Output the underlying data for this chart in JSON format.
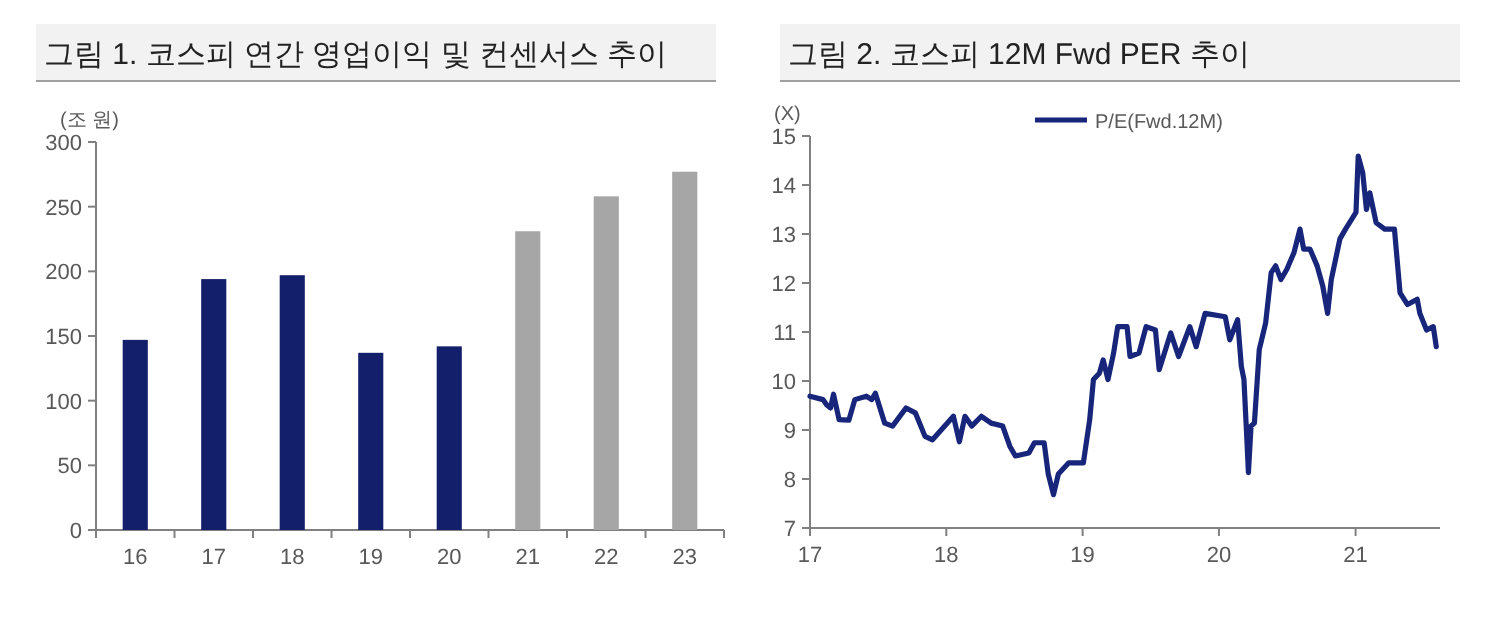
{
  "chart_data": [
    {
      "type": "bar",
      "title": "그림 1. 코스피 연간 영업이익 및 컨센서스 추이",
      "ylabel": "(조 원)",
      "categories": [
        "16",
        "17",
        "18",
        "19",
        "20",
        "21",
        "22",
        "23"
      ],
      "values": [
        147,
        194,
        197,
        137,
        142,
        231,
        258,
        277
      ],
      "colors": [
        "#141f6b",
        "#141f6b",
        "#141f6b",
        "#141f6b",
        "#141f6b",
        "#a6a6a6",
        "#a6a6a6",
        "#a6a6a6"
      ],
      "ylim": [
        0,
        300
      ],
      "yticks": [
        0,
        50,
        100,
        150,
        200,
        250,
        300
      ]
    },
    {
      "type": "line",
      "title": "그림 2. 코스피 12M Fwd PER 추이",
      "ylabel": "(X)",
      "legend": "top",
      "series": [
        {
          "name": "P/E(Fwd.12M)",
          "color": "#17267a",
          "x": [
            "2017-01-01",
            "2017-02-05",
            "2017-02-15",
            "2017-02-25",
            "2017-03-05",
            "2017-03-20",
            "2017-04-15",
            "2017-05-01",
            "2017-06-01",
            "2017-06-15",
            "2017-06-25",
            "2017-07-20",
            "2017-08-10",
            "2017-09-15",
            "2017-10-10",
            "2017-11-05",
            "2017-11-25",
            "2018-01-20",
            "2018-02-05",
            "2018-02-20",
            "2018-03-10",
            "2018-04-05",
            "2018-05-01",
            "2018-06-01",
            "2018-06-20",
            "2018-07-05",
            "2018-08-10",
            "2018-08-25",
            "2018-09-20",
            "2018-10-01",
            "2018-10-15",
            "2018-10-28",
            "2018-11-25",
            "2019-01-03",
            "2019-01-20",
            "2019-01-30",
            "2019-02-15",
            "2019-02-25",
            "2019-03-10",
            "2019-03-25",
            "2019-04-05",
            "2019-04-30",
            "2019-05-08",
            "2019-06-01",
            "2019-06-20",
            "2019-07-15",
            "2019-07-25",
            "2019-08-25",
            "2019-09-15",
            "2019-10-15",
            "2019-11-01",
            "2019-11-25",
            "2020-01-18",
            "2020-01-30",
            "2020-02-20",
            "2020-03-01",
            "2020-03-08",
            "2020-03-15",
            "2020-03-20",
            "2020-03-27",
            "2020-04-05",
            "2020-04-18",
            "2020-05-05",
            "2020-05-20",
            "2020-06-01",
            "2020-06-15",
            "2020-07-01",
            "2020-07-20",
            "2020-08-05",
            "2020-08-15",
            "2020-09-01",
            "2020-09-20",
            "2020-10-05",
            "2020-10-18",
            "2020-10-28",
            "2020-11-20",
            "2020-12-05",
            "2021-01-02",
            "2021-01-08",
            "2021-01-20",
            "2021-01-30",
            "2021-02-08",
            "2021-02-25",
            "2021-03-20",
            "2021-04-15",
            "2021-04-30",
            "2021-05-20",
            "2021-06-15",
            "2021-06-22",
            "2021-07-10",
            "2021-07-28",
            "2021-08-05"
          ],
          "values": [
            9.69,
            9.62,
            9.51,
            9.45,
            9.73,
            9.21,
            9.2,
            9.62,
            9.69,
            9.62,
            9.75,
            9.14,
            9.08,
            9.45,
            9.35,
            8.87,
            8.8,
            9.28,
            8.76,
            9.28,
            9.08,
            9.28,
            9.14,
            9.08,
            8.67,
            8.47,
            8.53,
            8.74,
            8.74,
            8.1,
            7.68,
            8.1,
            8.33,
            8.33,
            9.21,
            10.03,
            10.16,
            10.43,
            10.03,
            10.57,
            11.11,
            11.11,
            10.5,
            10.57,
            11.11,
            11.04,
            10.23,
            10.98,
            10.5,
            11.11,
            10.7,
            11.38,
            11.31,
            10.84,
            11.25,
            10.3,
            10.03,
            8.94,
            8.13,
            9.08,
            9.14,
            10.64,
            11.18,
            12.21,
            12.35,
            12.07,
            12.28,
            12.62,
            13.1,
            12.69,
            12.69,
            12.35,
            11.94,
            11.38,
            12.07,
            12.9,
            13.1,
            13.44,
            14.59,
            14.25,
            13.5,
            13.84,
            13.23,
            13.1,
            13.1,
            11.8,
            11.56,
            11.67,
            11.38,
            11.04,
            11.11,
            10.7
          ]
        }
      ],
      "xlim": [
        "2017-01-01",
        "2021-08-15"
      ],
      "xticks": [
        {
          "value": "2017-01-01",
          "label": "17"
        },
        {
          "value": "2018-01-01",
          "label": "18"
        },
        {
          "value": "2019-01-01",
          "label": "19"
        },
        {
          "value": "2020-01-01",
          "label": "20"
        },
        {
          "value": "2021-01-01",
          "label": "21"
        }
      ],
      "ylim": [
        7,
        15
      ],
      "yticks": [
        7,
        8,
        9,
        10,
        11,
        12,
        13,
        14,
        15
      ]
    }
  ]
}
